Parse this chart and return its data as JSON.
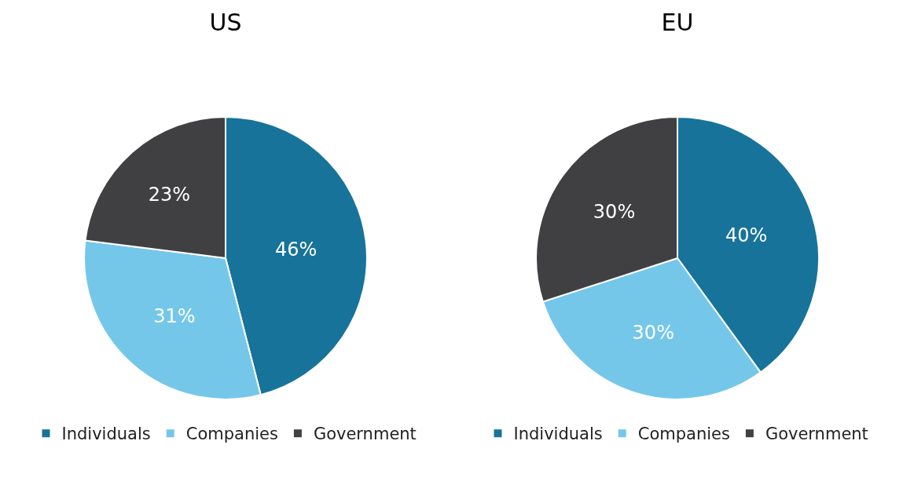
{
  "chart_data": [
    {
      "type": "pie",
      "title": "US",
      "categories": [
        "Individuals",
        "Companies",
        "Government"
      ],
      "values": [
        46,
        31,
        23
      ],
      "value_labels": [
        "46%",
        "31%",
        "23%"
      ],
      "colors": [
        "#17739a",
        "#75c7ea",
        "#404043"
      ],
      "legend": "bottom"
    },
    {
      "type": "pie",
      "title": "EU",
      "categories": [
        "Individuals",
        "Companies",
        "Government"
      ],
      "values": [
        40,
        30,
        30
      ],
      "value_labels": [
        "40%",
        "30%",
        "30%"
      ],
      "colors": [
        "#17739a",
        "#75c7ea",
        "#404043"
      ],
      "legend": "bottom"
    }
  ]
}
